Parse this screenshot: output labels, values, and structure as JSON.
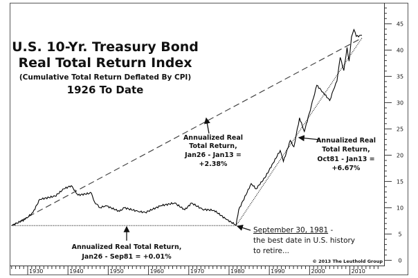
{
  "chart_data": {
    "type": "line",
    "title": "U.S. 10-Yr. Treasury Bond",
    "title_line2": "Real Total Return Index",
    "subtitle": "(Cumulative Total Return Deflated By CPI)",
    "subtitle2": "1926 To Date",
    "xlabel": "",
    "ylabel": "",
    "xlim": [
      1925.7,
      2018.5
    ],
    "ylim": [
      -1,
      49
    ],
    "grid": false,
    "x_ticks": [
      1930,
      1940,
      1950,
      1960,
      1970,
      1980,
      1990,
      2000,
      2010
    ],
    "y_ticks": [
      0,
      5,
      10,
      15,
      20,
      25,
      30,
      35,
      40,
      45
    ],
    "series": [
      {
        "x": [
          1926.0,
          1929.4,
          1931.3,
          1933.0,
          1936.8,
          1939.0,
          1940.8,
          1942.5,
          1945.8,
          1946.6,
          1948.0,
          1949.4,
          1952.8,
          1954.0,
          1957.4,
          1959.2,
          1963.1,
          1966.5,
          1969.0,
          1970.7,
          1973.4,
          1976.3,
          1979.3,
          1981.75,
          1982.4,
          1985.5,
          1986.7,
          1988.9,
          1992.7,
          1993.5,
          1995.2,
          1996.1,
          1997.5,
          1998.7,
          2000.4,
          2001.8,
          2003.3,
          2005.0,
          2005.9,
          2006.8,
          2007.6,
          2008.5,
          2009.3,
          2009.8,
          2010.4,
          2011.0,
          2011.6,
          2013.0
        ],
        "y": [
          6.6,
          7.8,
          9.1,
          11.6,
          12.2,
          13.6,
          14.2,
          12.4,
          12.8,
          11.1,
          10.0,
          10.4,
          9.3,
          10.0,
          9.3,
          9.1,
          10.4,
          10.9,
          9.6,
          10.9,
          9.7,
          9.5,
          7.8,
          6.7,
          9.6,
          14.6,
          13.6,
          15.7,
          20.9,
          18.8,
          22.8,
          21.6,
          27.1,
          24.5,
          29.3,
          33.3,
          32.0,
          30.4,
          32.4,
          34.1,
          38.6,
          36.1,
          40.5,
          37.9,
          42.5,
          43.9,
          42.6,
          42.8
        ]
      }
    ],
    "trendlines": [
      {
        "style": "dashed",
        "from": [
          1926,
          6.6
        ],
        "to": [
          2013,
          42.3
        ]
      },
      {
        "style": "dotted",
        "from": [
          1926,
          6.6
        ],
        "to": [
          1981.75,
          6.6
        ]
      },
      {
        "style": "dotted",
        "from": [
          1981.75,
          6.6
        ],
        "to": [
          2013,
          42.3
        ]
      }
    ],
    "annotations": {
      "full_period": [
        "Annualized Real",
        "Total Return,",
        "Jan26 - Jan13 =",
        "+2.38%"
      ],
      "post_1981": [
        "Annualized Real",
        "Total Return,",
        "Oct81 - Jan13 =",
        "+6.67%"
      ],
      "pre_1981": [
        "Annualized Real Total Return,",
        "Jan26 - Sep81 = +0.01%"
      ],
      "best_date_underlined": "September 30, 1981",
      "best_date_suffix": " -",
      "best_date_lines": [
        "the best date in U.S. history",
        "to retire..."
      ]
    },
    "copyright": "© 2013 The Leuthold Group"
  }
}
